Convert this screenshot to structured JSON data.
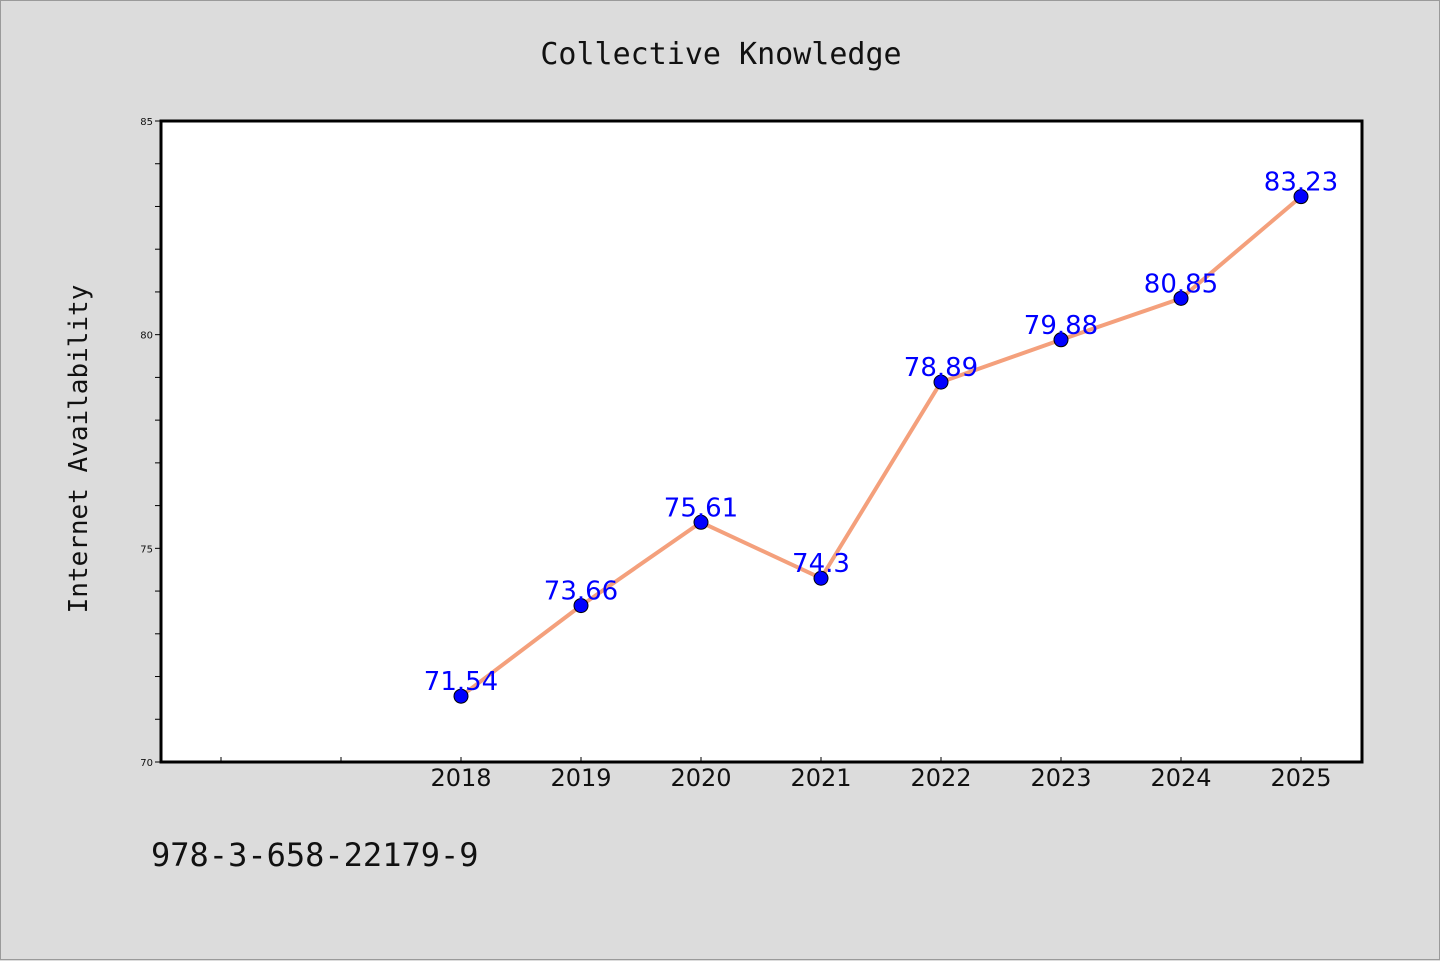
{
  "chart_data": {
    "type": "line",
    "title": "Collective Knowledge",
    "xlabel": "",
    "ylabel": "Internet Availability",
    "categories": [
      "2018",
      "2019",
      "2020",
      "2021",
      "2022",
      "2023",
      "2024",
      "2025"
    ],
    "series": [
      {
        "values": [
          71.54,
          73.66,
          75.61,
          74.3,
          78.89,
          79.88,
          80.85,
          83.23
        ],
        "labels": [
          "71.54",
          "73.66",
          "75.61",
          "74.3",
          "78.89",
          "79.88",
          "80.85",
          "83.23"
        ],
        "line_color": "#f4a07c",
        "marker_color": "#0000ff"
      }
    ],
    "ylim": [
      70,
      85
    ],
    "yticks": [
      "70",
      "75",
      "80",
      "85"
    ],
    "grid": false,
    "legend": "none",
    "label_color": "#0000ff"
  },
  "footer": {
    "code": "978-3-658-22179-9"
  }
}
